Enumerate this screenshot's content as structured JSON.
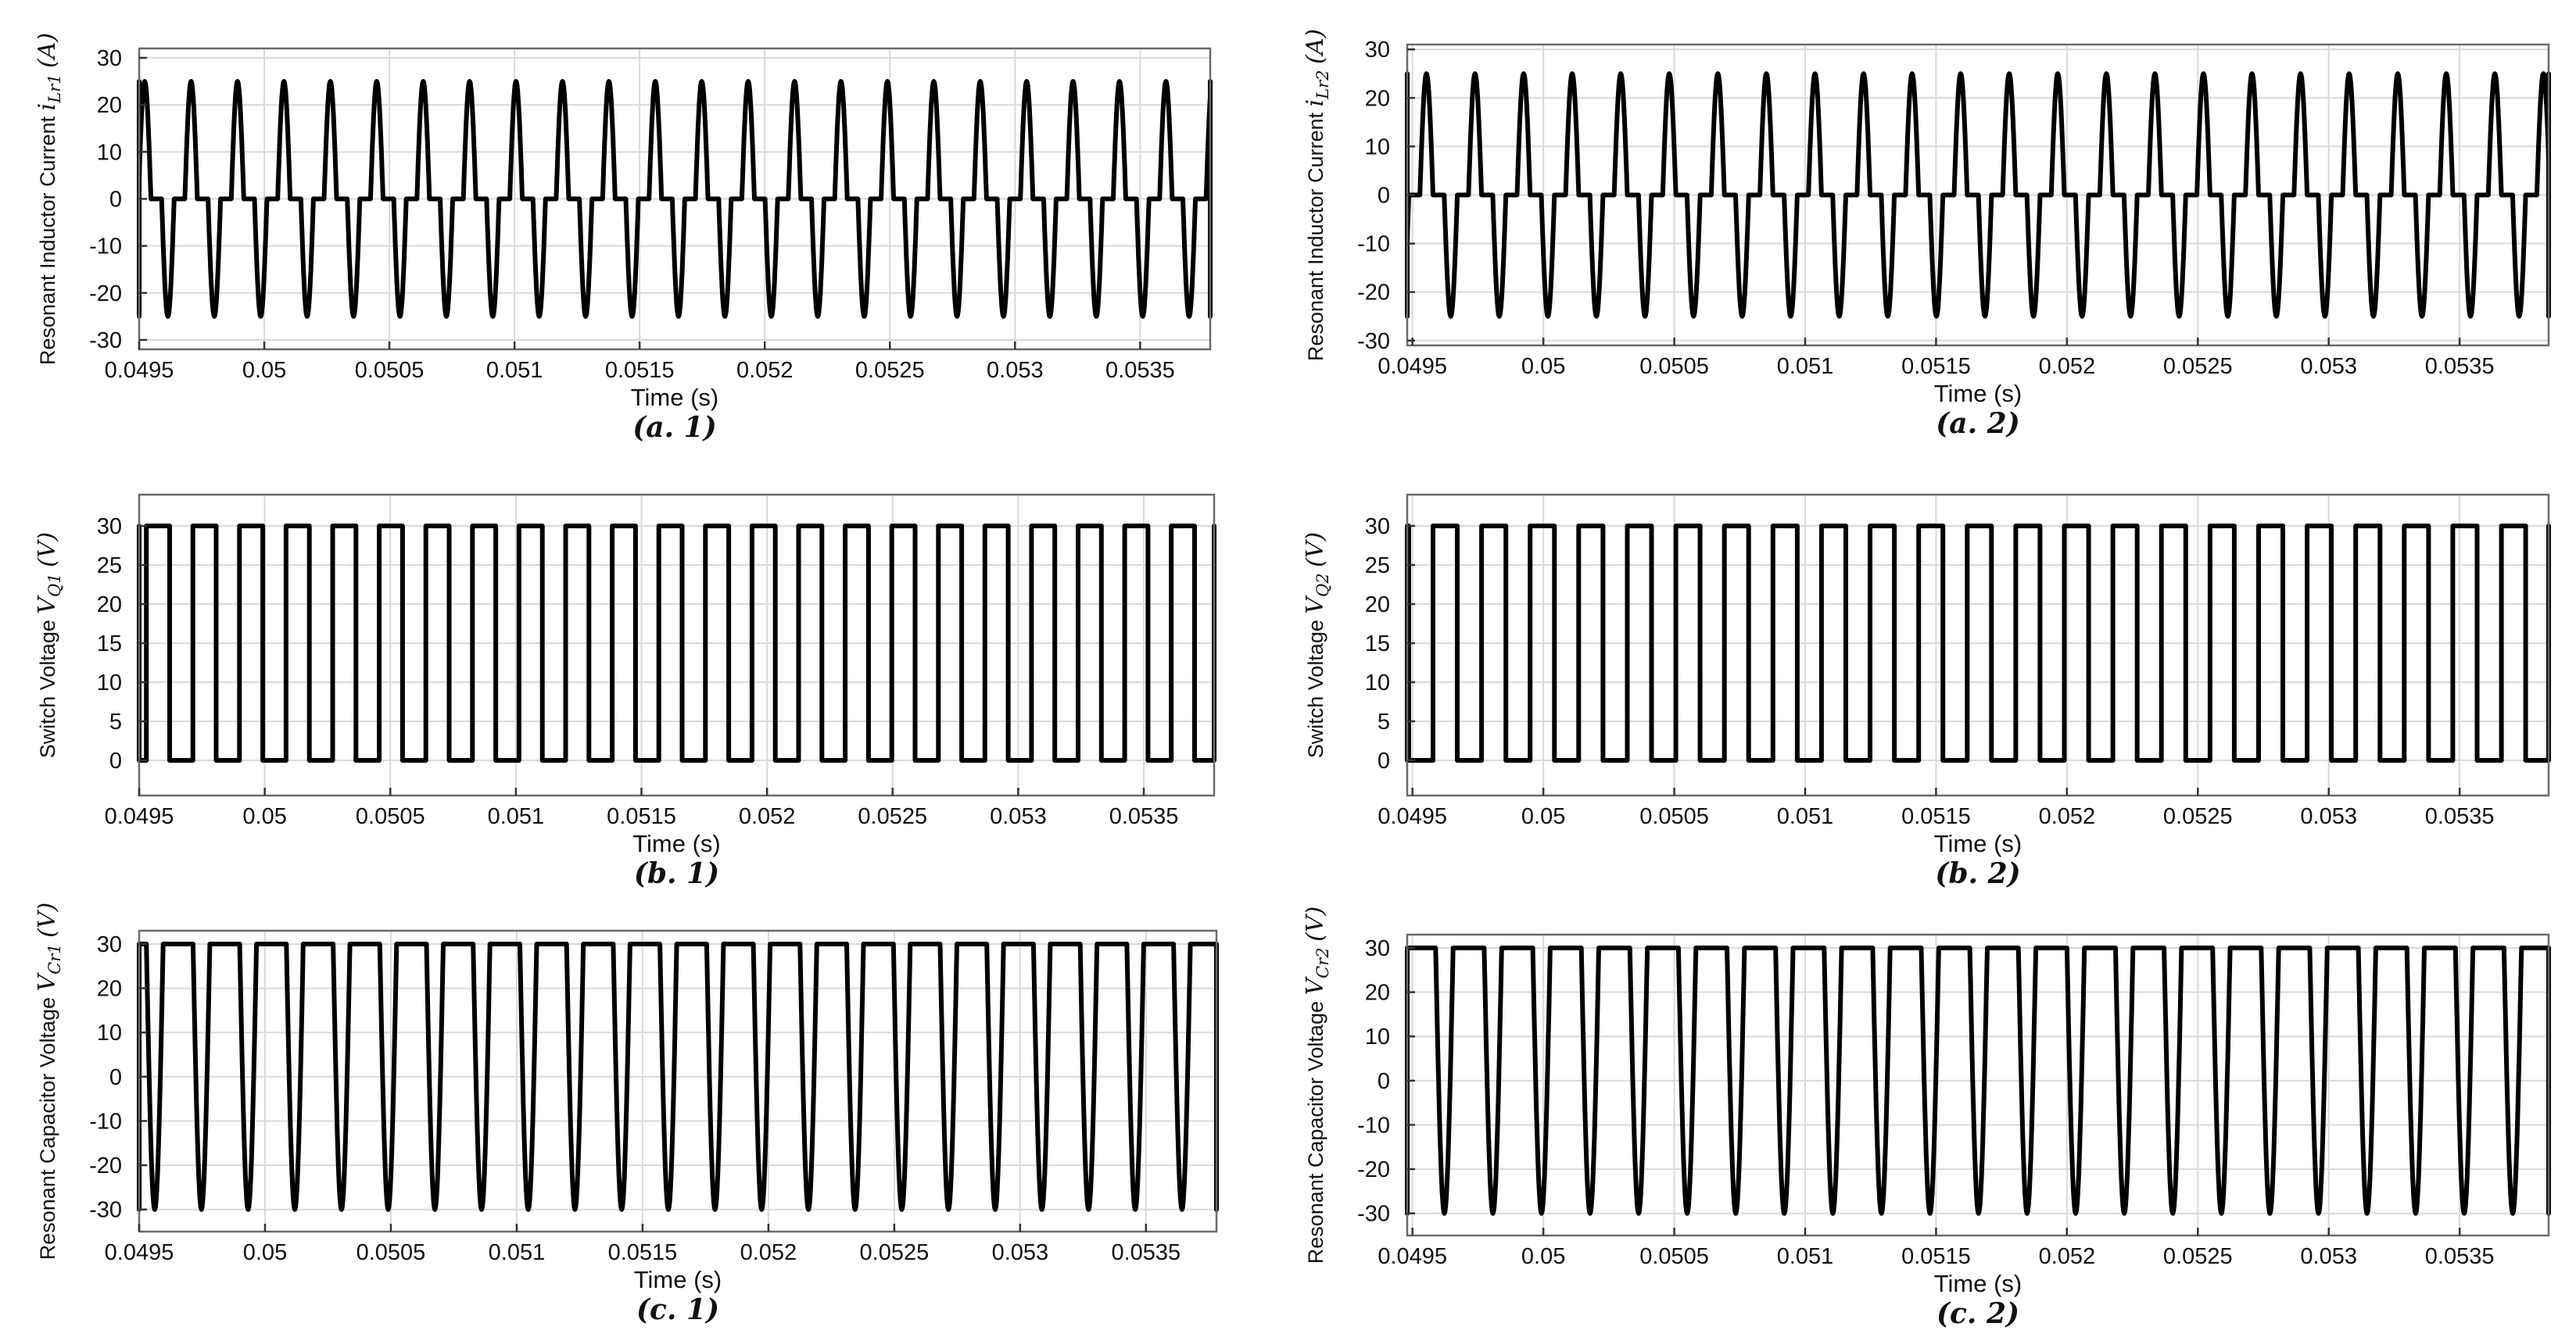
{
  "chart_data": [
    {
      "id": "a1",
      "type": "line",
      "caption": "(a. 1)",
      "ylabel_text": "Resonant Inductor Current",
      "ylabel_symbol": "i",
      "ylabel_subscript": "Lr1",
      "ylabel_unit": "(A)",
      "xlabel": "Time (s)",
      "xlim": [
        0.0495,
        0.05378
      ],
      "ylim": [
        -32,
        32
      ],
      "xticks": [
        0.0495,
        0.05,
        0.0505,
        0.051,
        0.0515,
        0.052,
        0.0525,
        0.053,
        0.0535
      ],
      "xtick_labels": [
        "0.0495",
        "0.05",
        "0.0505",
        "0.051",
        "0.0515",
        "0.052",
        "0.0525",
        "0.053",
        "0.0535"
      ],
      "yticks": [
        -30,
        -20,
        -10,
        0,
        10,
        20,
        30
      ],
      "ytick_labels": [
        "-30",
        "-20",
        "-10",
        "0",
        "10",
        "20",
        "30"
      ],
      "grid": true,
      "series": [
        {
          "name": "iLr1",
          "waveform": "resonant_pulse",
          "amplitude": 25,
          "high": 25,
          "low": -25,
          "period": 0.0001855,
          "pulse_fraction": 0.27,
          "phase": -3.15e-05
        }
      ]
    },
    {
      "id": "a2",
      "type": "line",
      "caption": "(a. 2)",
      "ylabel_text": "Resonant Inductor Current",
      "ylabel_symbol": "i",
      "ylabel_subscript": "Lr2",
      "ylabel_unit": "(A)",
      "xlabel": "Time (s)",
      "xlim": [
        0.04948,
        0.05384
      ],
      "ylim": [
        -31,
        31
      ],
      "xticks": [
        0.0495,
        0.05,
        0.0505,
        0.051,
        0.0515,
        0.052,
        0.0525,
        0.053,
        0.0535
      ],
      "xtick_labels": [
        "0.0495",
        "0.05",
        "0.0505",
        "0.051",
        "0.0515",
        "0.052",
        "0.0525",
        "0.053",
        "0.0535"
      ],
      "yticks": [
        -30,
        -20,
        -10,
        0,
        10,
        20,
        30
      ],
      "ytick_labels": [
        "-30",
        "-20",
        "-10",
        "0",
        "10",
        "20",
        "30"
      ],
      "grid": true,
      "series": [
        {
          "name": "iLr2",
          "waveform": "resonant_pulse",
          "amplitude": 25,
          "high": 25,
          "low": -25,
          "period": 0.0001855,
          "pulse_fraction": 0.27,
          "phase": 0.0
        }
      ]
    },
    {
      "id": "b1",
      "type": "line",
      "caption": "(b. 1)",
      "ylabel_text": "Switch Voltage",
      "ylabel_symbol": "V",
      "ylabel_subscript": "Q1",
      "ylabel_unit": "(V)",
      "xlabel": "Time (s)",
      "xlim": [
        0.0495,
        0.05378
      ],
      "ylim": [
        -4.5,
        34
      ],
      "xticks": [
        0.0495,
        0.05,
        0.0505,
        0.051,
        0.0515,
        0.052,
        0.0525,
        0.053,
        0.0535
      ],
      "xtick_labels": [
        "0.0495",
        "0.05",
        "0.0505",
        "0.051",
        "0.0515",
        "0.052",
        "0.0525",
        "0.053",
        "0.0535"
      ],
      "yticks": [
        0,
        5,
        10,
        15,
        20,
        25,
        30
      ],
      "ytick_labels": [
        "0",
        "5",
        "10",
        "15",
        "20",
        "25",
        "30"
      ],
      "grid": true,
      "series": [
        {
          "name": "VQ1",
          "waveform": "square",
          "high": 30,
          "low": 0,
          "period": 0.0001855,
          "duty": 0.5,
          "phase": 0.0
        }
      ]
    },
    {
      "id": "b2",
      "type": "line",
      "caption": "(b. 2)",
      "ylabel_text": "Switch Voltage",
      "ylabel_symbol": "V",
      "ylabel_subscript": "Q2",
      "ylabel_unit": "(V)",
      "xlabel": "Time (s)",
      "xlim": [
        0.04948,
        0.05384
      ],
      "ylim": [
        -4.5,
        34
      ],
      "xticks": [
        0.0495,
        0.05,
        0.0505,
        0.051,
        0.0515,
        0.052,
        0.0525,
        0.053,
        0.0535
      ],
      "xtick_labels": [
        "0.0495",
        "0.05",
        "0.0505",
        "0.051",
        "0.0515",
        "0.052",
        "0.0525",
        "0.053",
        "0.0535"
      ],
      "yticks": [
        0,
        5,
        10,
        15,
        20,
        25,
        30
      ],
      "ytick_labels": [
        "0",
        "5",
        "10",
        "15",
        "20",
        "25",
        "30"
      ],
      "grid": true,
      "series": [
        {
          "name": "VQ2",
          "waveform": "square",
          "high": 30,
          "low": 0,
          "period": 0.0001855,
          "duty": 0.5,
          "phase": 5e-05
        }
      ]
    },
    {
      "id": "c1",
      "type": "line",
      "caption": "(c. 1)",
      "ylabel_text": "Resonant Capacitor Voltage",
      "ylabel_symbol": "V",
      "ylabel_subscript": "Cr1",
      "ylabel_unit": "(V)",
      "xlabel": "Time (s)",
      "xlim": [
        0.0495,
        0.05378
      ],
      "ylim": [
        -35,
        33
      ],
      "xticks": [
        0.0495,
        0.05,
        0.0505,
        0.051,
        0.0515,
        0.052,
        0.0525,
        0.053,
        0.0535
      ],
      "xtick_labels": [
        "0.0495",
        "0.05",
        "0.0505",
        "0.051",
        "0.0515",
        "0.052",
        "0.0525",
        "0.053",
        "0.0535"
      ],
      "yticks": [
        -30,
        -20,
        -10,
        0,
        10,
        20,
        30
      ],
      "ytick_labels": [
        "-30",
        "-20",
        "-10",
        "0",
        "10",
        "20",
        "30"
      ],
      "grid": true,
      "series": [
        {
          "name": "VCr1",
          "waveform": "notch",
          "high": 30,
          "low": -30,
          "period": 0.0001855,
          "notch_fraction": 0.36,
          "phase": 0.0
        }
      ]
    },
    {
      "id": "c2",
      "type": "line",
      "caption": "(c. 2)",
      "ylabel_text": "Resonant Capacitor Voltage",
      "ylabel_symbol": "V",
      "ylabel_subscript": "Cr2",
      "ylabel_unit": "(V)",
      "xlabel": "Time (s)",
      "xlim": [
        0.04948,
        0.05384
      ],
      "ylim": [
        -35,
        33
      ],
      "xticks": [
        0.0495,
        0.05,
        0.0505,
        0.051,
        0.0515,
        0.052,
        0.0525,
        0.053,
        0.0535
      ],
      "xtick_labels": [
        "0.0495",
        "0.05",
        "0.0505",
        "0.051",
        "0.0515",
        "0.052",
        "0.0525",
        "0.053",
        "0.0535"
      ],
      "yticks": [
        -30,
        -20,
        -10,
        0,
        10,
        20,
        30
      ],
      "ytick_labels": [
        "-30",
        "-20",
        "-10",
        "0",
        "10",
        "20",
        "30"
      ],
      "grid": true,
      "series": [
        {
          "name": "VCr2",
          "waveform": "notch",
          "high": 30,
          "low": -30,
          "period": 0.0001855,
          "notch_fraction": 0.36,
          "phase": 6e-05
        }
      ]
    }
  ]
}
